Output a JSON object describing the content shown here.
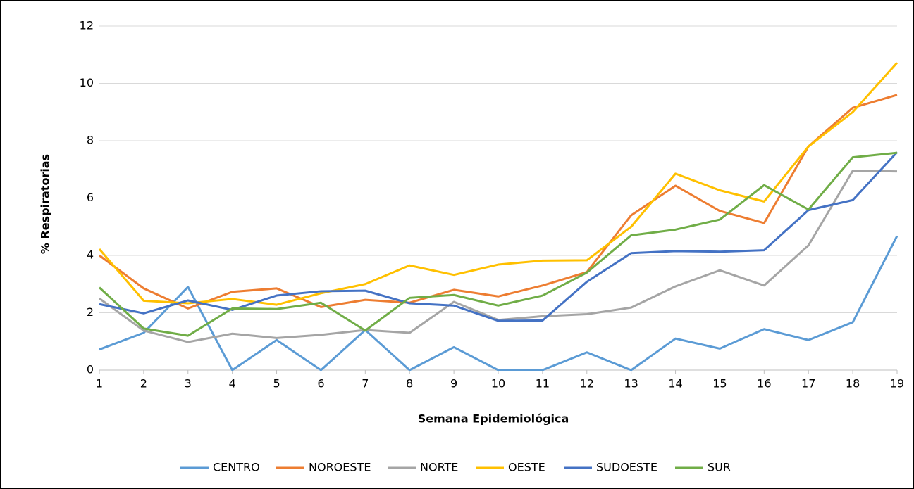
{
  "chart_data": {
    "type": "line",
    "xlabel": "Semana Epidemiológica",
    "ylabel": "% Respiratorias",
    "x": [
      1,
      2,
      3,
      4,
      5,
      6,
      7,
      8,
      9,
      10,
      11,
      12,
      13,
      14,
      15,
      16,
      17,
      18,
      19
    ],
    "xlim": [
      1,
      19
    ],
    "xticks": [
      1,
      2,
      3,
      4,
      5,
      6,
      7,
      8,
      9,
      10,
      11,
      12,
      13,
      14,
      15,
      16,
      17,
      18,
      19
    ],
    "ylim": [
      0,
      12
    ],
    "yticks": [
      0,
      2,
      4,
      6,
      8,
      10,
      12
    ],
    "grid": true,
    "legend": "bottom",
    "series": [
      {
        "name": "CENTRO",
        "color": "#5b9bd5",
        "values": [
          0.72,
          1.3,
          2.9,
          0,
          1.05,
          0,
          1.4,
          0,
          0.8,
          0,
          0,
          0.62,
          0,
          1.1,
          0.75,
          1.43,
          1.05,
          1.67,
          4.68
        ]
      },
      {
        "name": "NOROESTE",
        "color": "#ed7d31",
        "values": [
          4.0,
          2.85,
          2.15,
          2.73,
          2.85,
          2.2,
          2.45,
          2.35,
          2.8,
          2.57,
          2.95,
          3.42,
          5.4,
          6.43,
          5.55,
          5.13,
          7.8,
          9.15,
          9.6
        ]
      },
      {
        "name": "NORTE",
        "color": "#a5a5a5",
        "values": [
          2.5,
          1.38,
          0.98,
          1.27,
          1.12,
          1.23,
          1.4,
          1.3,
          2.38,
          1.75,
          1.88,
          1.95,
          2.18,
          2.92,
          3.48,
          2.95,
          4.35,
          6.95,
          6.93
        ]
      },
      {
        "name": "OESTE",
        "color": "#ffc000",
        "values": [
          4.22,
          2.42,
          2.33,
          2.48,
          2.28,
          2.68,
          3.0,
          3.65,
          3.32,
          3.68,
          3.82,
          3.83,
          5.0,
          6.85,
          6.27,
          5.88,
          7.8,
          9.0,
          10.72
        ]
      },
      {
        "name": "SUDOESTE",
        "color": "#4472c4",
        "values": [
          2.3,
          1.98,
          2.43,
          2.1,
          2.6,
          2.75,
          2.77,
          2.33,
          2.25,
          1.72,
          1.73,
          3.08,
          4.08,
          4.15,
          4.13,
          4.18,
          5.58,
          5.93,
          7.6
        ]
      },
      {
        "name": "SUR",
        "color": "#70ad47",
        "values": [
          2.88,
          1.45,
          1.2,
          2.15,
          2.13,
          2.35,
          1.38,
          2.52,
          2.62,
          2.25,
          2.6,
          3.4,
          4.7,
          4.9,
          5.25,
          6.45,
          5.6,
          7.42,
          7.58
        ]
      }
    ]
  }
}
